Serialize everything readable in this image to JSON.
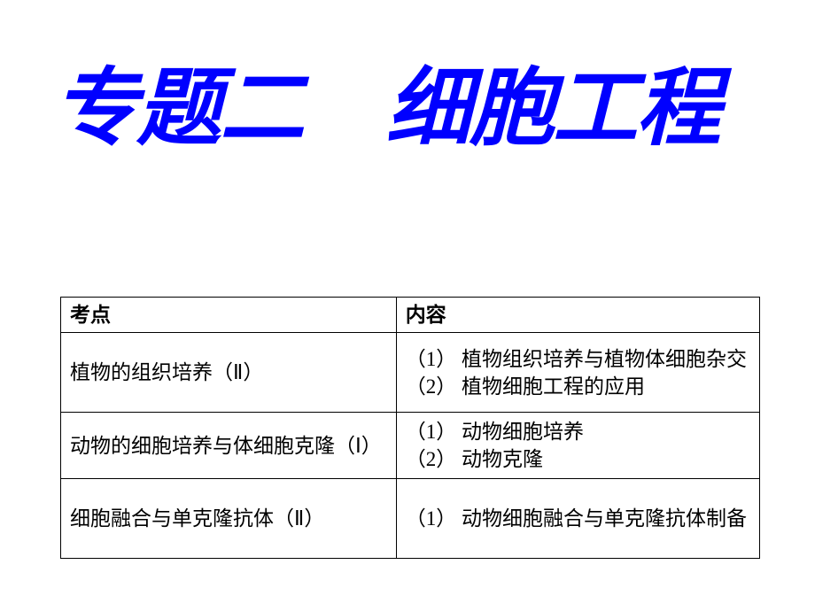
{
  "title": "专题二　细胞工程",
  "watermark": "",
  "table": {
    "header": {
      "col1": "考点",
      "col2": "内容"
    },
    "rows": [
      {
        "topic": "植物的组织培养（Ⅱ）",
        "content": "（1） 植物组织培养与植物体细胞杂交\n（2） 植物细胞工程的应用"
      },
      {
        "topic": "动物的细胞培养与体细胞克隆（Ⅰ）",
        "content": "（1） 动物细胞培养\n（2） 动物克隆"
      },
      {
        "topic": "细胞融合与单克隆抗体（Ⅱ）",
        "content": "（1） 动物细胞融合与单克隆抗体制备"
      }
    ]
  },
  "colors": {
    "title_color": "#0000ff",
    "border_color": "#000000",
    "background": "#ffffff",
    "watermark_color": "#c0c0c0"
  },
  "typography": {
    "title_fontsize": 96,
    "title_weight": "bold",
    "title_style": "italic",
    "table_fontsize": 23,
    "header_weight": "bold"
  }
}
